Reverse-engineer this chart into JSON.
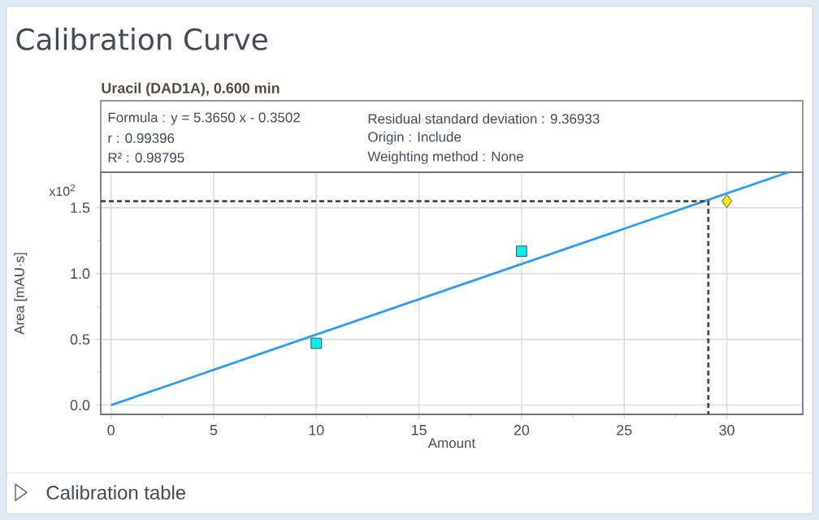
{
  "chart_data": {
    "type": "scatter",
    "title": "Calibration Curve",
    "subtitle": "Uracil (DAD1A), 0.600 min",
    "xlabel": "Amount",
    "ylabel": "Area [mAU·s]",
    "annotations": [
      "x10$^{2}$",
      "Formula : y = 5.3650 x - 0.3502",
      "r : 0.99396",
      "R² : 0.98795",
      "Residual standard deviation : 9.36933",
      "Origin : Include",
      "Weighting method : None",
      "Calibration table"
    ],
    "xlim": [
      -0.5,
      33.7
    ],
    "ylim": [
      -0.07,
      1.77
    ],
    "xticks": [
      0,
      5,
      10,
      15,
      20,
      25,
      30
    ],
    "yticks": [
      {
        "value": 0,
        "label": "0.0"
      },
      {
        "value": 0.5,
        "label": "0.5"
      },
      {
        "value": 1,
        "label": "1.0"
      },
      {
        "value": 1.5,
        "label": "1.5"
      }
    ],
    "grid": true,
    "series": [
      {
        "type": "line",
        "color": "#2a9df4",
        "line_style": "solid",
        "marker": "none",
        "x": [
          0,
          33
        ],
        "values": [
          0,
          1.77
        ]
      },
      {
        "type": "line",
        "color": "#404656",
        "line_style": "dashed",
        "marker": "none",
        "x": [
          -0.5,
          29.1,
          29.1
        ],
        "values": [
          1.55,
          1.55,
          -0.07
        ]
      },
      {
        "color": "#00f0f0",
        "marker": "square",
        "x": [
          10,
          20
        ],
        "values": [
          0.47,
          1.17
        ]
      },
      {
        "color": "#ffee00",
        "marker": "diamond",
        "x": [
          30
        ],
        "values": [
          1.55
        ]
      }
    ]
  }
}
